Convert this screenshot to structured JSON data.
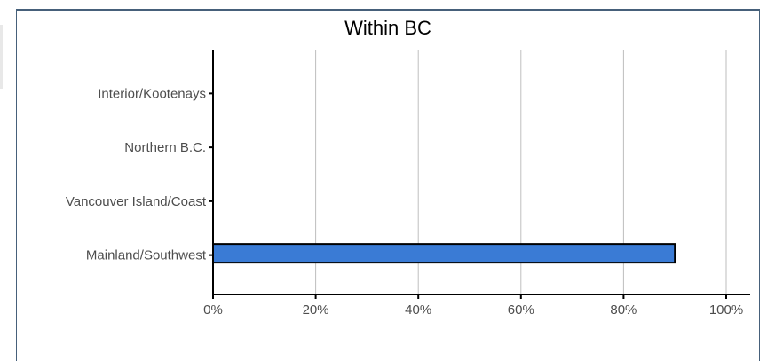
{
  "chart_data": {
    "type": "bar",
    "orientation": "horizontal",
    "title": "Within BC",
    "xlabel": "",
    "ylabel": "",
    "categories": [
      "Mainland/Southwest",
      "Vancouver Island/Coast",
      "Northern B.C.",
      "Interior/Kootenays"
    ],
    "values": [
      90,
      0,
      0,
      0
    ],
    "value_unit": "%",
    "xlim": [
      0,
      100
    ],
    "x_ticks": [
      0,
      20,
      40,
      60,
      80,
      100
    ],
    "x_tick_labels": [
      "0%",
      "20%",
      "40%",
      "60%",
      "80%",
      "100%"
    ],
    "grid": "vertical",
    "legend": "none",
    "bar_color": "#3a7bd5",
    "bar_edge_color": "#000000",
    "grid_color": "#bebebe"
  }
}
